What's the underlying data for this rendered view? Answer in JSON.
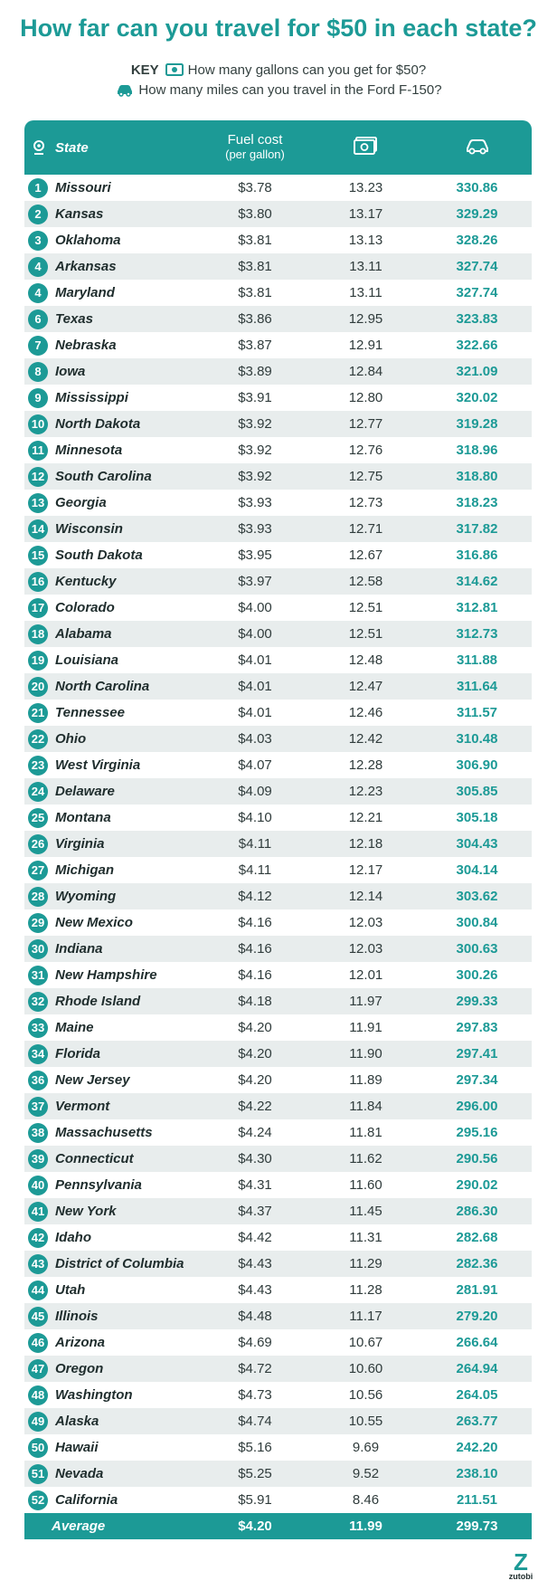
{
  "title": "How far can you travel for $50 in each state?",
  "key": {
    "label": "KEY",
    "gallons_text": "How many gallons can you get for $50?",
    "miles_text": "How many miles can you travel in the Ford F-150?"
  },
  "header": {
    "state": "State",
    "fuel_cost": "Fuel cost",
    "fuel_cost_sub": "(per gallon)",
    "gallons_icon": "money-bill-icon",
    "miles_icon": "car-icon"
  },
  "chart_data": {
    "type": "table",
    "title": "How far can you travel for $50 in each state?",
    "columns": [
      "State",
      "Fuel cost (per gallon)",
      "Gallons for $50",
      "Miles in Ford F-150"
    ],
    "rows": [
      {
        "rank": "1",
        "state": "Missouri",
        "cost": "$3.78",
        "gallons": "13.23",
        "miles": "330.86"
      },
      {
        "rank": "2",
        "state": "Kansas",
        "cost": "$3.80",
        "gallons": "13.17",
        "miles": "329.29"
      },
      {
        "rank": "3",
        "state": "Oklahoma",
        "cost": "$3.81",
        "gallons": "13.13",
        "miles": "328.26"
      },
      {
        "rank": "4",
        "state": "Arkansas",
        "cost": "$3.81",
        "gallons": "13.11",
        "miles": "327.74"
      },
      {
        "rank": "4",
        "state": "Maryland",
        "cost": "$3.81",
        "gallons": "13.11",
        "miles": "327.74"
      },
      {
        "rank": "6",
        "state": "Texas",
        "cost": "$3.86",
        "gallons": "12.95",
        "miles": "323.83"
      },
      {
        "rank": "7",
        "state": "Nebraska",
        "cost": "$3.87",
        "gallons": "12.91",
        "miles": "322.66"
      },
      {
        "rank": "8",
        "state": "Iowa",
        "cost": "$3.89",
        "gallons": "12.84",
        "miles": "321.09"
      },
      {
        "rank": "9",
        "state": "Mississippi",
        "cost": "$3.91",
        "gallons": "12.80",
        "miles": "320.02"
      },
      {
        "rank": "10",
        "state": "North Dakota",
        "cost": "$3.92",
        "gallons": "12.77",
        "miles": "319.28"
      },
      {
        "rank": "11",
        "state": "Minnesota",
        "cost": "$3.92",
        "gallons": "12.76",
        "miles": "318.96"
      },
      {
        "rank": "12",
        "state": "South Carolina",
        "cost": "$3.92",
        "gallons": "12.75",
        "miles": "318.80"
      },
      {
        "rank": "13",
        "state": "Georgia",
        "cost": "$3.93",
        "gallons": "12.73",
        "miles": "318.23"
      },
      {
        "rank": "14",
        "state": "Wisconsin",
        "cost": "$3.93",
        "gallons": "12.71",
        "miles": "317.82"
      },
      {
        "rank": "15",
        "state": "South Dakota",
        "cost": "$3.95",
        "gallons": "12.67",
        "miles": "316.86"
      },
      {
        "rank": "16",
        "state": "Kentucky",
        "cost": "$3.97",
        "gallons": "12.58",
        "miles": "314.62"
      },
      {
        "rank": "17",
        "state": "Colorado",
        "cost": "$4.00",
        "gallons": "12.51",
        "miles": "312.81"
      },
      {
        "rank": "18",
        "state": "Alabama",
        "cost": "$4.00",
        "gallons": "12.51",
        "miles": "312.73"
      },
      {
        "rank": "19",
        "state": "Louisiana",
        "cost": "$4.01",
        "gallons": "12.48",
        "miles": "311.88"
      },
      {
        "rank": "20",
        "state": "North Carolina",
        "cost": "$4.01",
        "gallons": "12.47",
        "miles": "311.64"
      },
      {
        "rank": "21",
        "state": "Tennessee",
        "cost": "$4.01",
        "gallons": "12.46",
        "miles": "311.57"
      },
      {
        "rank": "22",
        "state": "Ohio",
        "cost": "$4.03",
        "gallons": "12.42",
        "miles": "310.48"
      },
      {
        "rank": "23",
        "state": "West Virginia",
        "cost": "$4.07",
        "gallons": "12.28",
        "miles": "306.90"
      },
      {
        "rank": "24",
        "state": "Delaware",
        "cost": "$4.09",
        "gallons": "12.23",
        "miles": "305.85"
      },
      {
        "rank": "25",
        "state": "Montana",
        "cost": "$4.10",
        "gallons": "12.21",
        "miles": "305.18"
      },
      {
        "rank": "26",
        "state": "Virginia",
        "cost": "$4.11",
        "gallons": "12.18",
        "miles": "304.43"
      },
      {
        "rank": "27",
        "state": "Michigan",
        "cost": "$4.11",
        "gallons": "12.17",
        "miles": "304.14"
      },
      {
        "rank": "28",
        "state": "Wyoming",
        "cost": "$4.12",
        "gallons": "12.14",
        "miles": "303.62"
      },
      {
        "rank": "29",
        "state": "New Mexico",
        "cost": "$4.16",
        "gallons": "12.03",
        "miles": "300.84"
      },
      {
        "rank": "30",
        "state": "Indiana",
        "cost": "$4.16",
        "gallons": "12.03",
        "miles": "300.63"
      },
      {
        "rank": "31",
        "state": "New Hampshire",
        "cost": "$4.16",
        "gallons": "12.01",
        "miles": "300.26"
      },
      {
        "rank": "32",
        "state": "Rhode Island",
        "cost": "$4.18",
        "gallons": "11.97",
        "miles": "299.33"
      },
      {
        "rank": "33",
        "state": "Maine",
        "cost": "$4.20",
        "gallons": "11.91",
        "miles": "297.83"
      },
      {
        "rank": "34",
        "state": "Florida",
        "cost": "$4.20",
        "gallons": "11.90",
        "miles": "297.41"
      },
      {
        "rank": "36",
        "state": "New Jersey",
        "cost": "$4.20",
        "gallons": "11.89",
        "miles": "297.34"
      },
      {
        "rank": "37",
        "state": "Vermont",
        "cost": "$4.22",
        "gallons": "11.84",
        "miles": "296.00"
      },
      {
        "rank": "38",
        "state": "Massachusetts",
        "cost": "$4.24",
        "gallons": "11.81",
        "miles": "295.16"
      },
      {
        "rank": "39",
        "state": "Connecticut",
        "cost": "$4.30",
        "gallons": "11.62",
        "miles": "290.56"
      },
      {
        "rank": "40",
        "state": "Pennsylvania",
        "cost": "$4.31",
        "gallons": "11.60",
        "miles": "290.02"
      },
      {
        "rank": "41",
        "state": "New York",
        "cost": "$4.37",
        "gallons": "11.45",
        "miles": "286.30"
      },
      {
        "rank": "42",
        "state": "Idaho",
        "cost": "$4.42",
        "gallons": "11.31",
        "miles": "282.68"
      },
      {
        "rank": "43",
        "state": "District of Columbia",
        "cost": "$4.43",
        "gallons": "11.29",
        "miles": "282.36"
      },
      {
        "rank": "44",
        "state": "Utah",
        "cost": "$4.43",
        "gallons": "11.28",
        "miles": "281.91"
      },
      {
        "rank": "45",
        "state": "Illinois",
        "cost": "$4.48",
        "gallons": "11.17",
        "miles": "279.20"
      },
      {
        "rank": "46",
        "state": "Arizona",
        "cost": "$4.69",
        "gallons": "10.67",
        "miles": "266.64"
      },
      {
        "rank": "47",
        "state": "Oregon",
        "cost": "$4.72",
        "gallons": "10.60",
        "miles": "264.94"
      },
      {
        "rank": "48",
        "state": "Washington",
        "cost": "$4.73",
        "gallons": "10.56",
        "miles": "264.05"
      },
      {
        "rank": "49",
        "state": "Alaska",
        "cost": "$4.74",
        "gallons": "10.55",
        "miles": "263.77"
      },
      {
        "rank": "50",
        "state": "Hawaii",
        "cost": "$5.16",
        "gallons": "9.69",
        "miles": "242.20"
      },
      {
        "rank": "51",
        "state": "Nevada",
        "cost": "$5.25",
        "gallons": "9.52",
        "miles": "238.10"
      },
      {
        "rank": "52",
        "state": "California",
        "cost": "$5.91",
        "gallons": "8.46",
        "miles": "211.51"
      }
    ],
    "average": {
      "label": "Average",
      "cost": "$4.20",
      "gallons": "11.99",
      "miles": "299.73"
    }
  },
  "colors": {
    "accent": "#1c9a96",
    "stripe": "#e8eded"
  },
  "brand": {
    "mark": "Z",
    "name": "zutobi"
  }
}
